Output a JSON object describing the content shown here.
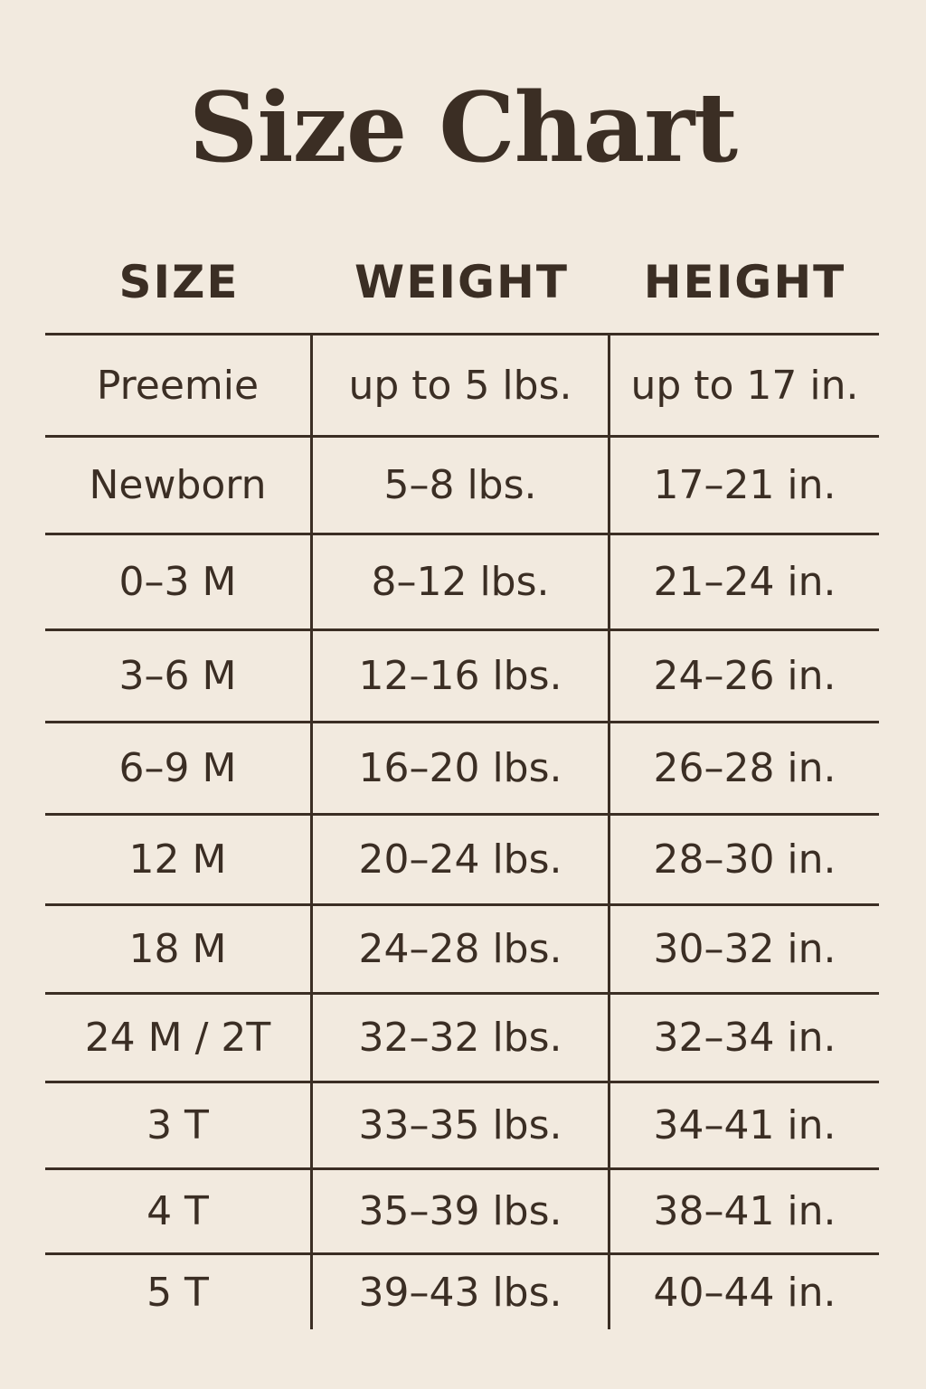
{
  "title": "Size Chart",
  "headers": [
    "SIZE",
    "WEIGHT",
    "HEIGHT"
  ],
  "rows": [
    [
      "Preemie",
      "up to 5 lbs.",
      "up to 17 in."
    ],
    [
      "Newborn",
      "5–8 lbs.",
      "17–21 in."
    ],
    [
      "0–3 M",
      "8–12 lbs.",
      "21–24 in."
    ],
    [
      "3–6 M",
      "12–16 lbs.",
      "24–26 in."
    ],
    [
      "6–9 M",
      "16–20 lbs.",
      "26–28 in."
    ],
    [
      "12 M",
      "20–24 lbs.",
      "28–30 in."
    ],
    [
      "18 M",
      "24–28 lbs.",
      "30–32 in."
    ],
    [
      "24 M / 2T",
      "32–32 lbs.",
      "32–34 in."
    ],
    [
      "3 T",
      "33–35 lbs.",
      "34–41 in."
    ],
    [
      "4 T",
      "35–39 lbs.",
      "38–41 in."
    ],
    [
      "5 T",
      "39–43 lbs.",
      "40–44 in."
    ]
  ],
  "colors": {
    "background": "#f2eadf",
    "text": "#3b2e24"
  }
}
